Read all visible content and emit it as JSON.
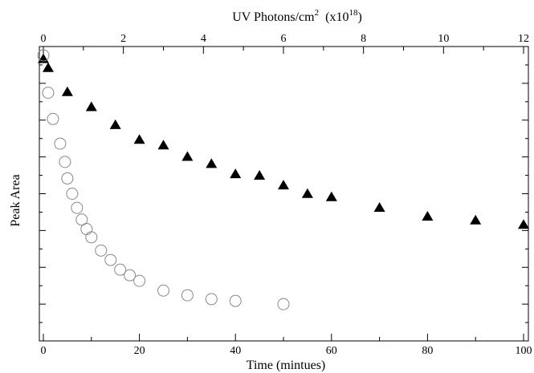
{
  "chart_data": {
    "type": "scatter",
    "title": "",
    "xlabel": "Time (mintues)",
    "ylabel": "Peak Area",
    "top_axis": {
      "label_main": "UV Photons/cm",
      "label_sup1": "2",
      "label_mid": "  (x10",
      "label_sup2": "18",
      "label_end": ")",
      "ticks": [
        0,
        2,
        4,
        6,
        8,
        10,
        12
      ],
      "tick_labels": [
        "0",
        "2",
        "4",
        "6",
        "8",
        "10",
        "12"
      ],
      "xlim": [
        0,
        12
      ]
    },
    "bottom_axis": {
      "ticks": [
        0,
        20,
        40,
        60,
        80,
        100
      ],
      "tick_labels": [
        "0",
        "20",
        "40",
        "60",
        "80",
        "100"
      ],
      "xlim": [
        0,
        100
      ]
    },
    "ylim": [
      0,
      1
    ],
    "y_ticks": [
      0.125,
      0.25,
      0.375,
      0.5,
      0.625,
      0.75,
      0.875
    ],
    "grid": false,
    "legend": "none",
    "series": [
      {
        "marker": "triangle",
        "color": "#000000",
        "x": [
          0,
          1,
          5,
          10,
          15,
          20,
          25,
          30,
          35,
          40,
          45,
          50,
          55,
          60,
          70,
          80,
          90,
          100
        ],
        "y": [
          0.96,
          0.93,
          0.848,
          0.797,
          0.736,
          0.686,
          0.667,
          0.628,
          0.604,
          0.569,
          0.564,
          0.531,
          0.502,
          0.491,
          0.455,
          0.425,
          0.412,
          0.397
        ]
      },
      {
        "marker": "open-circle",
        "color": "#888888",
        "x": [
          0,
          1,
          2,
          3.5,
          4.5,
          5,
          6,
          7,
          8,
          9,
          10,
          12,
          14,
          16,
          18,
          20,
          25,
          30,
          35,
          40,
          50
        ],
        "y": [
          0.97,
          0.843,
          0.754,
          0.67,
          0.608,
          0.552,
          0.5,
          0.452,
          0.412,
          0.38,
          0.352,
          0.307,
          0.275,
          0.242,
          0.223,
          0.204,
          0.171,
          0.155,
          0.142,
          0.136,
          0.125
        ]
      }
    ]
  }
}
